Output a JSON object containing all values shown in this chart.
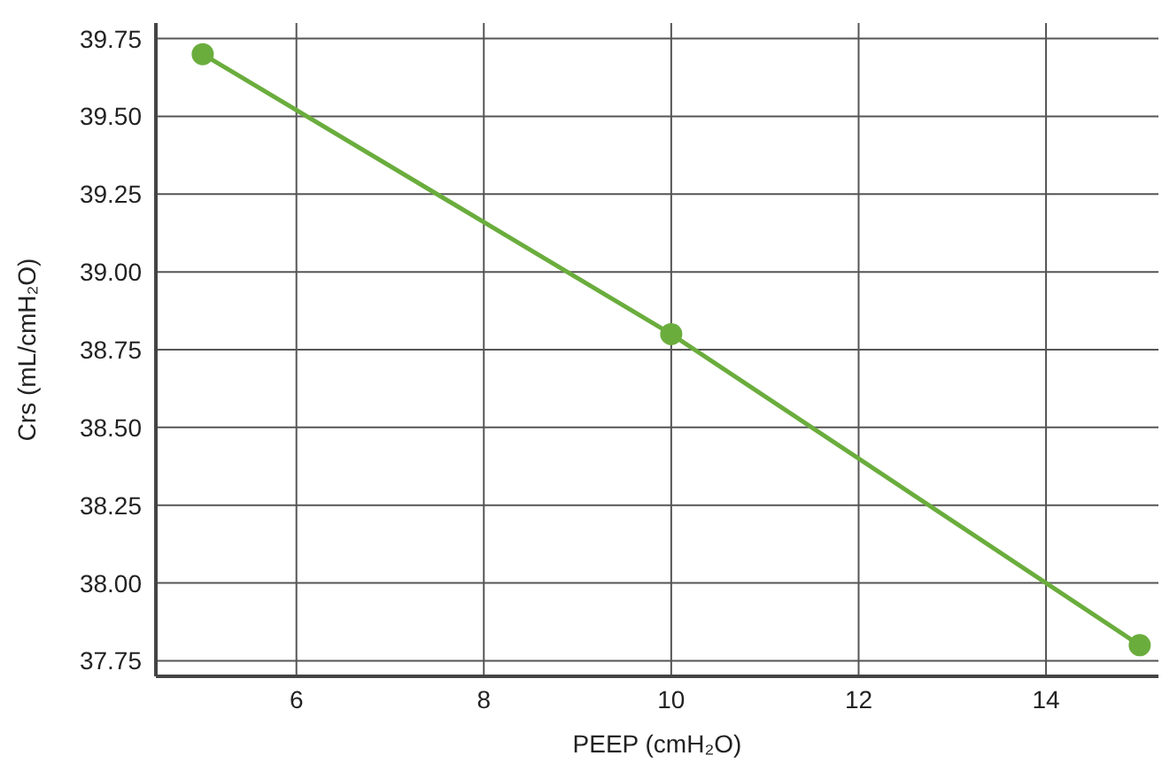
{
  "chart_data": {
    "type": "line",
    "xlabel": "PEEP (cmH₂O)",
    "ylabel": "Crs (mL/cmH₂O)",
    "x": [
      5,
      10,
      15
    ],
    "series": [
      {
        "color": "#6aad3d",
        "values": [
          39.7,
          38.8,
          37.8
        ]
      }
    ],
    "xlim": [
      4.5,
      15.2
    ],
    "xticks": [
      6,
      8,
      10,
      12,
      14
    ],
    "ylim": [
      37.7,
      39.8
    ],
    "yticks": [
      {
        "value": 37.75,
        "label": "37.75"
      },
      {
        "value": 38,
        "label": "38.00"
      },
      {
        "value": 38.25,
        "label": "38.25"
      },
      {
        "value": 38.5,
        "label": "38.50"
      },
      {
        "value": 38.75,
        "label": "38.75"
      },
      {
        "value": 39,
        "label": "39.00"
      },
      {
        "value": 39.25,
        "label": "39.25"
      },
      {
        "value": 39.5,
        "label": "39.50"
      },
      {
        "value": 39.75,
        "label": "39.75"
      }
    ],
    "grid": true,
    "marker": "circle",
    "line_style": "solid"
  }
}
